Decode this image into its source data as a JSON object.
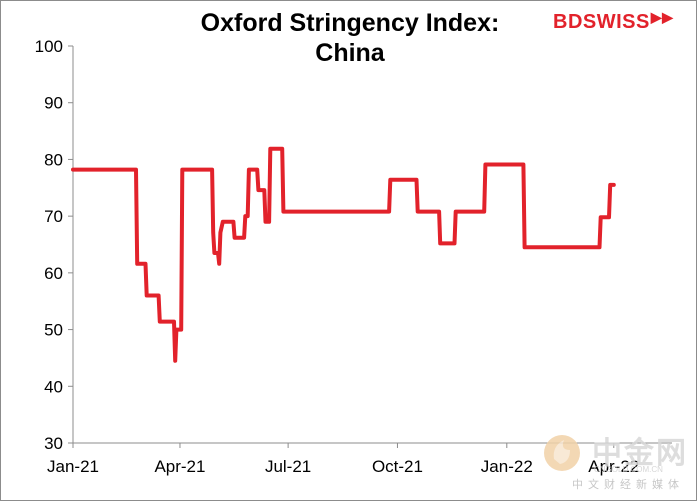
{
  "brand": {
    "logo_text": "BDSWISS",
    "logo_arrow": "▶▶"
  },
  "watermark": {
    "main": "中金网",
    "sub": "中文财经新媒体",
    "url": "CNGOLD.COM.CN"
  },
  "colors": {
    "series": "#e2222b",
    "axis": "#8c8c8c",
    "text": "#000000"
  },
  "chart_data": {
    "type": "line",
    "title": "Oxford Stringency Index: China",
    "title_lines": [
      "Oxford Stringency Index:",
      "China"
    ],
    "xlabel": "",
    "ylabel": "",
    "ylim": [
      30,
      100
    ],
    "yticks": [
      30,
      40,
      50,
      60,
      70,
      80,
      90,
      100
    ],
    "xlim": [
      "2021-01-01",
      "2022-05-20"
    ],
    "xticks": [
      {
        "date": "2021-01-01",
        "label": "Jan-21"
      },
      {
        "date": "2021-04-01",
        "label": "Apr-21"
      },
      {
        "date": "2021-07-01",
        "label": "Jul-21"
      },
      {
        "date": "2021-10-01",
        "label": "Oct-21"
      },
      {
        "date": "2022-01-01",
        "label": "Jan-22"
      },
      {
        "date": "2022-04-01",
        "label": "Apr-22"
      }
    ],
    "grid": false,
    "legend": "none",
    "series": [
      {
        "values": [
          [
            "2021-01-01",
            78.2
          ],
          [
            "2021-02-23",
            78.2
          ],
          [
            "2021-02-24",
            61.6
          ],
          [
            "2021-03-03",
            61.6
          ],
          [
            "2021-03-04",
            56.0
          ],
          [
            "2021-03-14",
            56.0
          ],
          [
            "2021-03-15",
            51.4
          ],
          [
            "2021-03-27",
            51.4
          ],
          [
            "2021-03-28",
            44.5
          ],
          [
            "2021-03-29",
            50.0
          ],
          [
            "2021-04-02",
            50.0
          ],
          [
            "2021-04-03",
            78.2
          ],
          [
            "2021-04-28",
            78.2
          ],
          [
            "2021-04-29",
            67.1
          ],
          [
            "2021-04-30",
            63.5
          ],
          [
            "2021-05-03",
            63.5
          ],
          [
            "2021-05-04",
            61.6
          ],
          [
            "2021-05-05",
            67.1
          ],
          [
            "2021-05-07",
            69.0
          ],
          [
            "2021-05-16",
            69.0
          ],
          [
            "2021-05-17",
            66.2
          ],
          [
            "2021-05-25",
            66.2
          ],
          [
            "2021-05-26",
            70.0
          ],
          [
            "2021-05-28",
            70.0
          ],
          [
            "2021-05-29",
            78.2
          ],
          [
            "2021-06-05",
            78.2
          ],
          [
            "2021-06-06",
            74.6
          ],
          [
            "2021-06-11",
            74.6
          ],
          [
            "2021-06-12",
            69.0
          ],
          [
            "2021-06-15",
            69.0
          ],
          [
            "2021-06-16",
            81.9
          ],
          [
            "2021-06-26",
            81.9
          ],
          [
            "2021-06-27",
            70.8
          ],
          [
            "2021-09-24",
            70.8
          ],
          [
            "2021-09-25",
            76.4
          ],
          [
            "2021-10-17",
            76.4
          ],
          [
            "2021-10-18",
            70.8
          ],
          [
            "2021-11-05",
            70.8
          ],
          [
            "2021-11-06",
            65.2
          ],
          [
            "2021-11-18",
            65.2
          ],
          [
            "2021-11-19",
            70.8
          ],
          [
            "2021-12-13",
            70.8
          ],
          [
            "2021-12-14",
            79.1
          ],
          [
            "2022-01-15",
            79.1
          ],
          [
            "2022-01-16",
            64.5
          ],
          [
            "2022-03-20",
            64.5
          ],
          [
            "2022-03-21",
            69.8
          ],
          [
            "2022-03-28",
            69.8
          ],
          [
            "2022-03-29",
            75.5
          ],
          [
            "2022-04-01",
            75.5
          ]
        ]
      }
    ]
  }
}
